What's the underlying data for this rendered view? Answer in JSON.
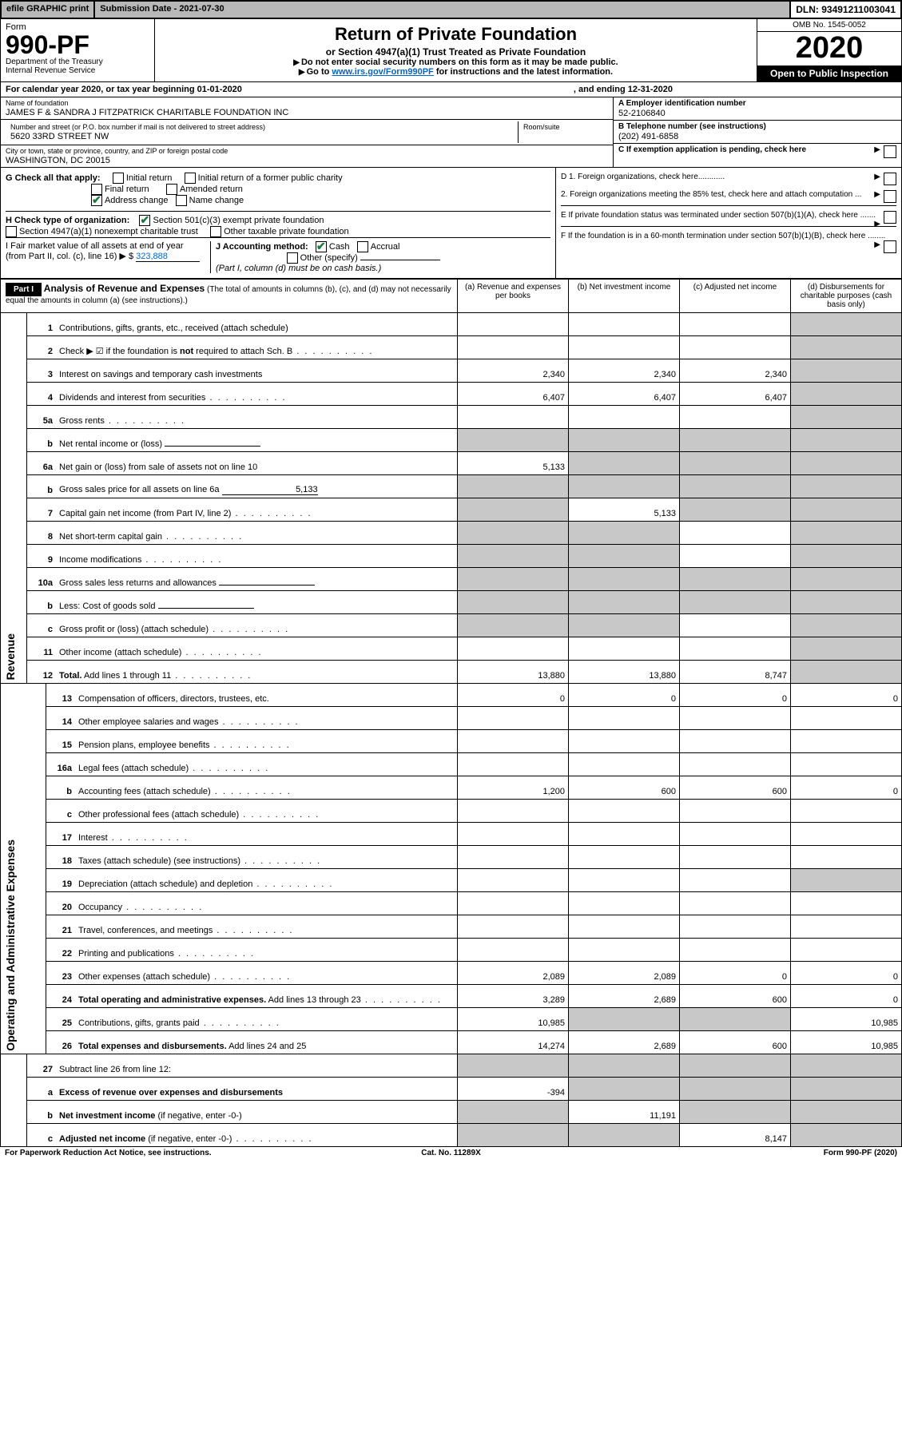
{
  "meta": {
    "efile": "efile GRAPHIC print",
    "submission_label": "Submission Date - 2021-07-30",
    "dln": "DLN: 93491211003041",
    "omb": "OMB No. 1545-0052",
    "form_label": "Form",
    "form_number": "990-PF",
    "dept1": "Department of the Treasury",
    "dept2": "Internal Revenue Service",
    "title": "Return of Private Foundation",
    "subtitle": "or Section 4947(a)(1) Trust Treated as Private Foundation",
    "note1": "Do not enter social security numbers on this form as it may be made public.",
    "note2_pre": "Go to ",
    "note2_link": "www.irs.gov/Form990PF",
    "note2_post": " for instructions and the latest information.",
    "year": "2020",
    "open": "Open to Public Inspection",
    "cal_pre": "For calendar year 2020, or tax year beginning 01-01-2020",
    "cal_mid": ", and ending 12-31-2020"
  },
  "id": {
    "name_label": "Name of foundation",
    "name": "JAMES F & SANDRA J FITZPATRICK CHARITABLE FOUNDATION INC",
    "addr_label": "Number and street (or P.O. box number if mail is not delivered to street address)",
    "addr": "5620 33RD STREET NW",
    "room_label": "Room/suite",
    "city_label": "City or town, state or province, country, and ZIP or foreign postal code",
    "city": "WASHINGTON, DC  20015",
    "a_label": "A Employer identification number",
    "a_val": "52-2106840",
    "b_label": "B Telephone number (see instructions)",
    "b_val": "(202) 491-6858",
    "c_label": "C If exemption application is pending, check here"
  },
  "checks": {
    "g_label": "G Check all that apply:",
    "g1": "Initial return",
    "g2": "Initial return of a former public charity",
    "g3": "Final return",
    "g4": "Amended return",
    "g5": "Address change",
    "g6": "Name change",
    "h_label": "H Check type of organization:",
    "h1": "Section 501(c)(3) exempt private foundation",
    "h2": "Section 4947(a)(1) nonexempt charitable trust",
    "h3": "Other taxable private foundation",
    "i_label": "I Fair market value of all assets at end of year (from Part II, col. (c), line 16)",
    "i_val": "323,888",
    "j_label": "J Accounting method:",
    "j1": "Cash",
    "j2": "Accrual",
    "j3": "Other (specify)",
    "j_note": "(Part I, column (d) must be on cash basis.)",
    "d1": "D 1. Foreign organizations, check here............",
    "d2": "2. Foreign organizations meeting the 85% test, check here and attach computation ...",
    "e": "E  If private foundation status was terminated under section 507(b)(1)(A), check here .......",
    "f": "F  If the foundation is in a 60-month termination under section 507(b)(1)(B), check here ........"
  },
  "part1": {
    "label": "Part I",
    "title": "Analysis of Revenue and Expenses",
    "title_note": "(The total of amounts in columns (b), (c), and (d) may not necessarily equal the amounts in column (a) (see instructions).)",
    "col_a": "(a)   Revenue and expenses per books",
    "col_b": "(b)  Net investment income",
    "col_c": "(c)  Adjusted net income",
    "col_d": "(d)  Disbursements for charitable purposes (cash basis only)",
    "rev_label": "Revenue",
    "exp_label": "Operating and Administrative Expenses"
  },
  "rows": [
    {
      "n": "1",
      "d": "Contributions, gifts, grants, etc., received (attach schedule)",
      "a": "",
      "b": "",
      "c": "",
      "ds": true
    },
    {
      "n": "2",
      "d": "Check ▶ ☑ if the foundation is <b>not</b> required to attach Sch. B",
      "dot": true,
      "a": "",
      "b": "",
      "c": "",
      "ds": true
    },
    {
      "n": "3",
      "d": "Interest on savings and temporary cash investments",
      "a": "2,340",
      "b": "2,340",
      "c": "2,340",
      "ds": true
    },
    {
      "n": "4",
      "d": "Dividends and interest from securities",
      "dot": true,
      "a": "6,407",
      "b": "6,407",
      "c": "6,407",
      "ds": true
    },
    {
      "n": "5a",
      "d": "Gross rents",
      "dot": true,
      "a": "",
      "b": "",
      "c": "",
      "ds": true
    },
    {
      "n": "b",
      "d": "Net rental income or (loss)",
      "uline": true,
      "as": true,
      "bs": true,
      "cs": true,
      "ds": true
    },
    {
      "n": "6a",
      "d": "Net gain or (loss) from sale of assets not on line 10",
      "a": "5,133",
      "bs": true,
      "cs": true,
      "ds": true
    },
    {
      "n": "b",
      "d": "Gross sales price for all assets on line 6a",
      "uline": true,
      "uval": "5,133",
      "as": true,
      "bs": true,
      "cs": true,
      "ds": true
    },
    {
      "n": "7",
      "d": "Capital gain net income (from Part IV, line 2)",
      "dot": true,
      "as": true,
      "b": "5,133",
      "cs": true,
      "ds": true
    },
    {
      "n": "8",
      "d": "Net short-term capital gain",
      "dot": true,
      "as": true,
      "bs": true,
      "c": "",
      "ds": true
    },
    {
      "n": "9",
      "d": "Income modifications",
      "dot": true,
      "as": true,
      "bs": true,
      "c": "",
      "ds": true
    },
    {
      "n": "10a",
      "d": "Gross sales less returns and allowances",
      "uline": true,
      "as": true,
      "bs": true,
      "cs": true,
      "ds": true
    },
    {
      "n": "b",
      "d": "Less: Cost of goods sold",
      "dot": true,
      "uline": true,
      "as": true,
      "bs": true,
      "cs": true,
      "ds": true
    },
    {
      "n": "c",
      "d": "Gross profit or (loss) (attach schedule)",
      "dot": true,
      "as": true,
      "bs": true,
      "c": "",
      "ds": true
    },
    {
      "n": "11",
      "d": "Other income (attach schedule)",
      "dot": true,
      "a": "",
      "b": "",
      "c": "",
      "ds": true
    },
    {
      "n": "12",
      "d": "<b>Total.</b> Add lines 1 through 11",
      "dot": true,
      "a": "13,880",
      "b": "13,880",
      "c": "8,747",
      "ds": true
    }
  ],
  "exp_rows": [
    {
      "n": "13",
      "d": "Compensation of officers, directors, trustees, etc.",
      "a": "0",
      "b": "0",
      "c": "0",
      "dd": "0"
    },
    {
      "n": "14",
      "d": "Other employee salaries and wages",
      "dot": true
    },
    {
      "n": "15",
      "d": "Pension plans, employee benefits",
      "dot": true
    },
    {
      "n": "16a",
      "d": "Legal fees (attach schedule)",
      "dot": true
    },
    {
      "n": "b",
      "d": "Accounting fees (attach schedule)",
      "dot": true,
      "a": "1,200",
      "b": "600",
      "c": "600",
      "dd": "0"
    },
    {
      "n": "c",
      "d": "Other professional fees (attach schedule)",
      "dot": true
    },
    {
      "n": "17",
      "d": "Interest",
      "dot": true
    },
    {
      "n": "18",
      "d": "Taxes (attach schedule) (see instructions)",
      "dot": true
    },
    {
      "n": "19",
      "d": "Depreciation (attach schedule) and depletion",
      "dot": true,
      "ds": true
    },
    {
      "n": "20",
      "d": "Occupancy",
      "dot": true
    },
    {
      "n": "21",
      "d": "Travel, conferences, and meetings",
      "dot": true
    },
    {
      "n": "22",
      "d": "Printing and publications",
      "dot": true
    },
    {
      "n": "23",
      "d": "Other expenses (attach schedule)",
      "dot": true,
      "a": "2,089",
      "b": "2,089",
      "c": "0",
      "dd": "0"
    },
    {
      "n": "24",
      "d": "<b>Total operating and administrative expenses.</b> Add lines 13 through 23",
      "dot": true,
      "a": "3,289",
      "b": "2,689",
      "c": "600",
      "dd": "0"
    },
    {
      "n": "25",
      "d": "Contributions, gifts, grants paid",
      "dot": true,
      "a": "10,985",
      "bs": true,
      "cs": true,
      "dd": "10,985"
    },
    {
      "n": "26",
      "d": "<b>Total expenses and disbursements.</b> Add lines 24 and 25",
      "a": "14,274",
      "b": "2,689",
      "c": "600",
      "dd": "10,985"
    }
  ],
  "sub_rows": [
    {
      "n": "27",
      "d": "Subtract line 26 from line 12:",
      "as": true,
      "bs": true,
      "cs": true,
      "ds": true
    },
    {
      "n": "a",
      "d": "<b>Excess of revenue over expenses and disbursements</b>",
      "a": "-394",
      "bs": true,
      "cs": true,
      "ds": true
    },
    {
      "n": "b",
      "d": "<b>Net investment income</b> (if negative, enter -0-)",
      "as": true,
      "b": "11,191",
      "cs": true,
      "ds": true
    },
    {
      "n": "c",
      "d": "<b>Adjusted net income</b> (if negative, enter -0-)",
      "dot": true,
      "as": true,
      "bs": true,
      "c": "8,147",
      "ds": true
    }
  ],
  "footer": {
    "left": "For Paperwork Reduction Act Notice, see instructions.",
    "center": "Cat. No. 11289X",
    "right": "Form 990-PF (2020)"
  }
}
